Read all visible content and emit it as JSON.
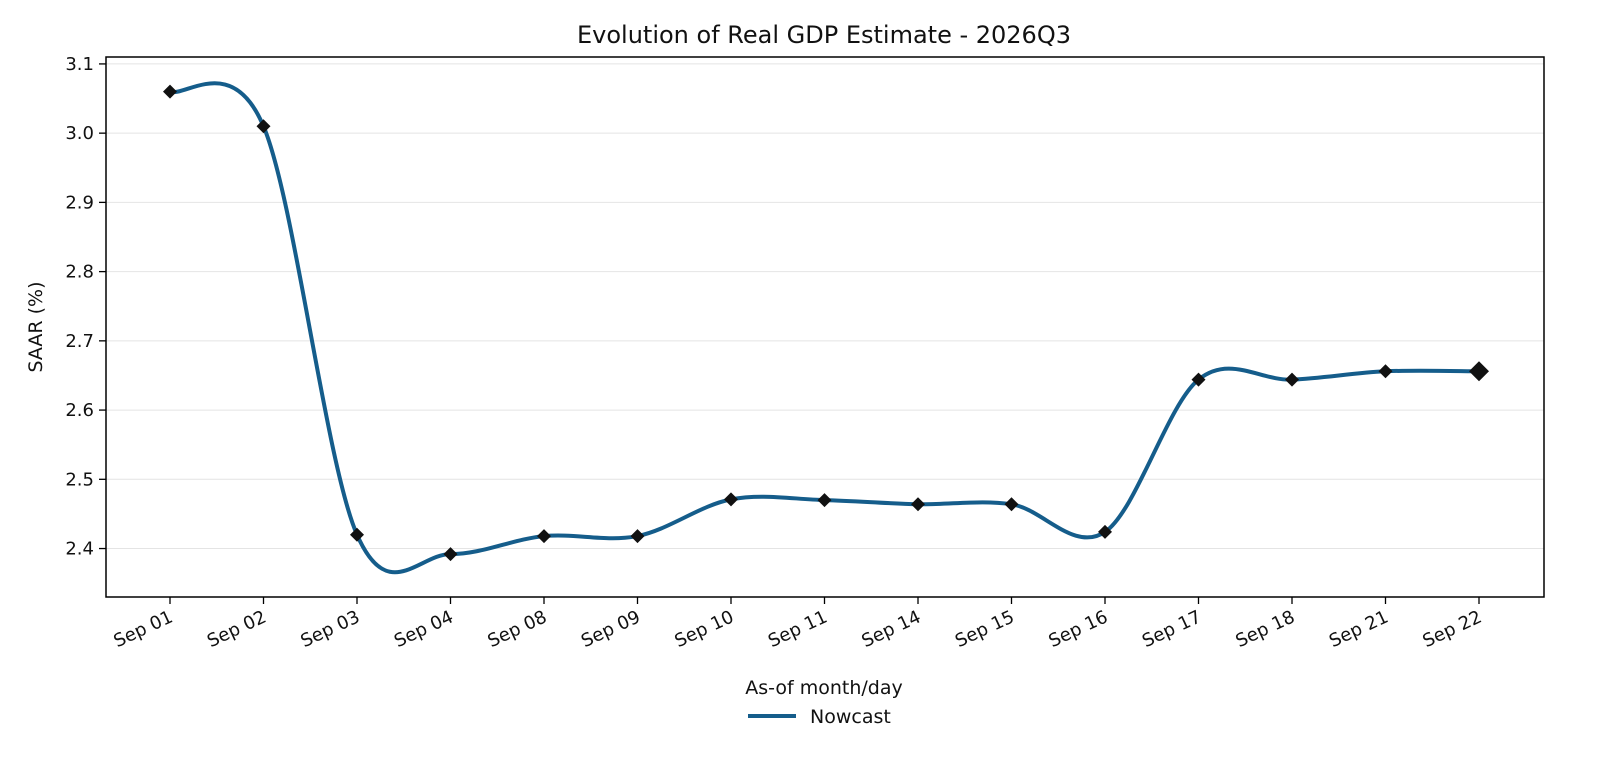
{
  "chart_data": {
    "type": "line",
    "title": "Evolution of Real GDP Estimate - 2026Q3",
    "xlabel": "As-of month/day",
    "ylabel": "SAAR (%)",
    "categories": [
      "Sep 01",
      "Sep 02",
      "Sep 03",
      "Sep 04",
      "Sep 08",
      "Sep 09",
      "Sep 10",
      "Sep 11",
      "Sep 14",
      "Sep 15",
      "Sep 16",
      "Sep 17",
      "Sep 18",
      "Sep 21",
      "Sep 22"
    ],
    "series": [
      {
        "name": "Nowcast",
        "color": "#155d8b",
        "marker_color": "#111111",
        "values": [
          3.06,
          3.01,
          2.42,
          2.392,
          2.418,
          2.418,
          2.471,
          2.47,
          2.464,
          2.464,
          2.424,
          2.644,
          2.644,
          2.656,
          2.656
        ]
      }
    ],
    "ylim": [
      2.33,
      3.11
    ],
    "yticks": [
      "2.4",
      "2.5",
      "2.6",
      "2.7",
      "2.8",
      "2.9",
      "3.0",
      "3.1"
    ],
    "grid": "horizontal",
    "legend": "bottom-center"
  }
}
